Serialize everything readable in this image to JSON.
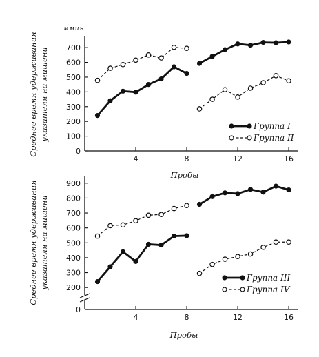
{
  "chart_data": [
    {
      "type": "line",
      "title": "",
      "unit_label": "ммин",
      "ylabel_line1": "Среднее время удерживания",
      "ylabel_line2": "указателя на мишени",
      "xlabel": "Пробы",
      "xlim": [
        0,
        16.7
      ],
      "ylim": [
        0,
        780
      ],
      "xticks": [
        4,
        8,
        12,
        16
      ],
      "yticks": [
        0,
        100,
        200,
        300,
        400,
        500,
        600,
        700
      ],
      "series": [
        {
          "name": "Группа I",
          "style": "filled",
          "x": [
            1,
            2,
            3,
            4,
            5,
            6,
            7,
            8
          ],
          "y": [
            240,
            340,
            405,
            398,
            450,
            488,
            570,
            525
          ]
        },
        {
          "name": "Группа I",
          "style": "filled",
          "x": [
            9,
            10,
            11,
            12,
            13,
            14,
            15,
            16
          ],
          "y": [
            593,
            640,
            686,
            725,
            716,
            735,
            733,
            738
          ]
        },
        {
          "name": "Группа II",
          "style": "open",
          "x": [
            1,
            2,
            3,
            4,
            5,
            6,
            7,
            8
          ],
          "y": [
            478,
            560,
            585,
            615,
            650,
            630,
            702,
            695
          ]
        },
        {
          "name": "Группа II",
          "style": "open",
          "x": [
            9,
            10,
            11,
            12,
            13,
            14,
            15,
            16
          ],
          "y": [
            285,
            350,
            415,
            365,
            425,
            462,
            510,
            475
          ]
        }
      ],
      "legend": [
        {
          "label": "Группа I",
          "style": "filled"
        },
        {
          "label": "Группа II",
          "style": "open"
        }
      ]
    },
    {
      "type": "line",
      "title": "",
      "ylabel_line1": "Среднее время удерживания",
      "ylabel_line2": "указателя на мишени",
      "xlabel": "Пробы",
      "xlim": [
        0,
        16.7
      ],
      "ylim": [
        150,
        950
      ],
      "axis_break": true,
      "xticks": [
        4,
        8,
        12,
        16
      ],
      "yticks": [
        0,
        200,
        300,
        400,
        500,
        600,
        700,
        800,
        900
      ],
      "series": [
        {
          "name": "Группа III",
          "style": "filled",
          "x": [
            1,
            2,
            3,
            4,
            5,
            6,
            7,
            8
          ],
          "y": [
            240,
            340,
            440,
            375,
            490,
            485,
            545,
            548
          ]
        },
        {
          "name": "Группа III",
          "style": "filled",
          "x": [
            9,
            10,
            11,
            12,
            13,
            14,
            15,
            16
          ],
          "y": [
            758,
            810,
            835,
            830,
            858,
            840,
            880,
            855
          ]
        },
        {
          "name": "Группа IV",
          "style": "open",
          "x": [
            1,
            2,
            3,
            4,
            5,
            6,
            7,
            8
          ],
          "y": [
            545,
            615,
            620,
            648,
            685,
            690,
            730,
            750
          ]
        },
        {
          "name": "Группа IV",
          "style": "open",
          "x": [
            9,
            10,
            11,
            12,
            13,
            14,
            15,
            16
          ],
          "y": [
            295,
            355,
            390,
            408,
            425,
            470,
            505,
            505
          ]
        }
      ],
      "legend": [
        {
          "label": "Группа III",
          "style": "filled"
        },
        {
          "label": "Группа IV",
          "style": "open"
        }
      ]
    }
  ]
}
